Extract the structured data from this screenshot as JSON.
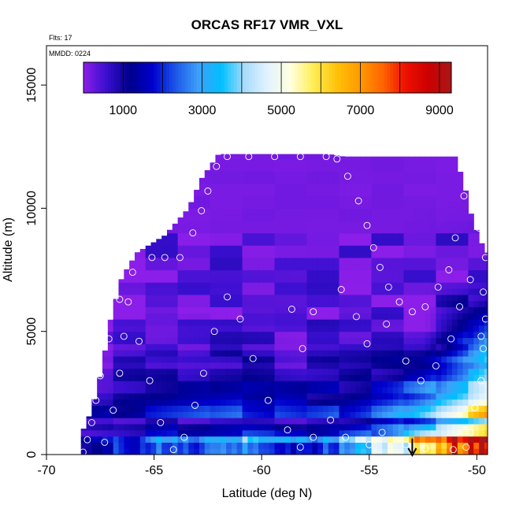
{
  "chart_data": {
    "type": "heatmap",
    "title": "ORCAS RF17 VMR_VXL",
    "annotations": {
      "flights": "Flts: 17",
      "date": "MMDD: 0224"
    },
    "xlabel": "Latitude (deg N)",
    "ylabel": "Altitude (m)",
    "xlim": [
      -70,
      -49.5
    ],
    "ylim": [
      0,
      16600
    ],
    "x_ticks": [
      -70,
      -65,
      -60,
      -55,
      -50
    ],
    "x_tick_labels": [
      "-70",
      "-65",
      "-60",
      "-55",
      "-50"
    ],
    "y_ticks": [
      0,
      5000,
      10000,
      15000
    ],
    "y_tick_labels": [
      "0",
      "5000",
      "10000",
      "15000"
    ],
    "colorbar": {
      "range": [
        0,
        9300
      ],
      "ticks": [
        1000,
        3000,
        5000,
        7000,
        9000
      ],
      "tick_labels": [
        "1000",
        "3000",
        "5000",
        "7000",
        "9000"
      ],
      "colors": [
        "#8b1ee8",
        "#3a0fd0",
        "#00008b",
        "#0000cd",
        "#1c56e8",
        "#3ea0f8",
        "#00bfff",
        "#a8dcfb",
        "#e2f2ff",
        "#ffffe0",
        "#ffee55",
        "#ffc20a",
        "#ff9a00",
        "#ff6600",
        "#ee1000",
        "#cc0000",
        "#a81818"
      ]
    },
    "grid": {
      "lat_min": -68.4,
      "lat_max": -49.6,
      "lat_step": 0.25,
      "alt_step": 250
    },
    "ceiling": [
      [
        -68.4,
        800
      ],
      [
        -67.9,
        1800
      ],
      [
        -67.4,
        3600
      ],
      [
        -67.0,
        5600
      ],
      [
        -66.5,
        7200
      ],
      [
        -65.8,
        8200
      ],
      [
        -64.5,
        8900
      ],
      [
        -63.4,
        10000
      ],
      [
        -62.8,
        11200
      ],
      [
        -62.0,
        12200
      ],
      [
        -56.9,
        12200
      ],
      [
        -56.2,
        12100
      ],
      [
        -51.0,
        12100
      ],
      [
        -50.6,
        11000
      ],
      [
        -50.2,
        9500
      ],
      [
        -49.6,
        8200
      ]
    ],
    "contour_points": [
      [
        -68.3,
        100
      ],
      [
        -68.1,
        600
      ],
      [
        -67.9,
        1300
      ],
      [
        -67.7,
        2200
      ],
      [
        -67.5,
        3200
      ],
      [
        -67.1,
        4700
      ],
      [
        -66.6,
        6300
      ],
      [
        -66.0,
        7400
      ],
      [
        -65.1,
        8000
      ],
      [
        -64.5,
        8000
      ],
      [
        -63.8,
        8000
      ],
      [
        -63.2,
        9000
      ],
      [
        -62.8,
        9900
      ],
      [
        -62.5,
        10700
      ],
      [
        -62.1,
        11700
      ],
      [
        -61.6,
        12100
      ],
      [
        -60.6,
        12100
      ],
      [
        -59.4,
        12100
      ],
      [
        -58.2,
        12100
      ],
      [
        -57.0,
        12100
      ],
      [
        -56.5,
        12000
      ],
      [
        -56.0,
        11300
      ],
      [
        -55.5,
        10300
      ],
      [
        -55.1,
        9300
      ],
      [
        -54.8,
        8400
      ],
      [
        -54.5,
        7600
      ],
      [
        -54.1,
        6800
      ],
      [
        -53.6,
        6200
      ],
      [
        -53.0,
        5800
      ],
      [
        -52.4,
        6000
      ],
      [
        -51.8,
        6800
      ],
      [
        -51.3,
        7500
      ],
      [
        -51.0,
        8800
      ],
      [
        -50.6,
        10500
      ],
      [
        -50.3,
        11400
      ],
      [
        -49.9,
        9200
      ],
      [
        -49.6,
        8000
      ],
      [
        -49.7,
        6600
      ],
      [
        -49.6,
        5500
      ],
      [
        -49.7,
        4300
      ],
      [
        -49.8,
        3000
      ],
      [
        -50.1,
        1900
      ],
      [
        -50.3,
        900
      ],
      [
        -50.5,
        300
      ],
      [
        -51.1,
        200
      ],
      [
        -52.4,
        250
      ],
      [
        -53.3,
        400
      ],
      [
        -54.4,
        900
      ],
      [
        -55.0,
        400
      ],
      [
        -56.1,
        700
      ],
      [
        -56.8,
        1400
      ],
      [
        -57.6,
        700
      ],
      [
        -58.2,
        300
      ],
      [
        -58.8,
        1000
      ],
      [
        -59.7,
        2200
      ],
      [
        -60.4,
        3900
      ],
      [
        -61.0,
        5500
      ],
      [
        -61.6,
        6400
      ],
      [
        -62.2,
        5000
      ],
      [
        -62.7,
        3300
      ],
      [
        -63.1,
        2000
      ],
      [
        -63.6,
        700
      ],
      [
        -64.1,
        200
      ],
      [
        -64.7,
        1300
      ],
      [
        -65.2,
        3000
      ],
      [
        -65.7,
        4600
      ],
      [
        -66.2,
        6200
      ],
      [
        -66.4,
        4800
      ],
      [
        -66.6,
        3300
      ],
      [
        -66.9,
        1800
      ],
      [
        -67.3,
        500
      ],
      [
        -58.6,
        5900
      ],
      [
        -58.1,
        4300
      ],
      [
        -57.6,
        5800
      ],
      [
        -56.3,
        6700
      ],
      [
        -55.6,
        5600
      ],
      [
        -55.1,
        4500
      ],
      [
        -54.2,
        5300
      ],
      [
        -53.3,
        3800
      ],
      [
        -52.6,
        3000
      ],
      [
        -51.9,
        3600
      ],
      [
        -51.2,
        4700
      ],
      [
        -50.8,
        6000
      ],
      [
        -50.3,
        7100
      ],
      [
        -49.8,
        4800
      ]
    ],
    "marker_lat": -53,
    "marker_alt_range": [
      0,
      650
    ]
  }
}
